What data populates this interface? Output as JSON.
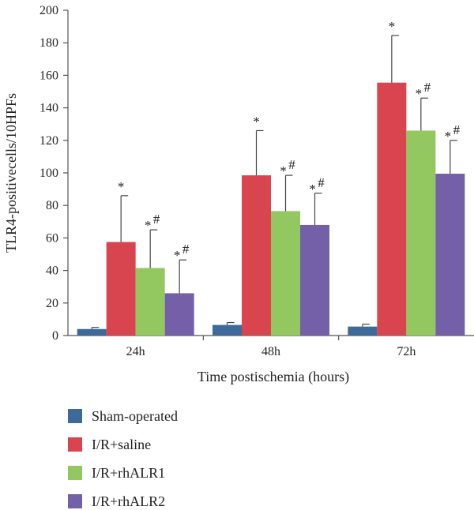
{
  "chart_data": {
    "type": "bar",
    "title": "",
    "xlabel": "Time postischemia (hours)",
    "ylabel": "TLR4-positivecells/10HPFs",
    "ylim": [
      0,
      200
    ],
    "yticks": [
      0,
      20,
      40,
      60,
      80,
      100,
      120,
      140,
      160,
      180,
      200
    ],
    "categories": [
      "24h",
      "48h",
      "72h"
    ],
    "grid": false,
    "legend_position": "bottom-left",
    "series": [
      {
        "name": "Sham-operated",
        "color": "#3d6a99",
        "values": [
          4,
          6.5,
          5.5
        ],
        "errors": [
          1,
          1.5,
          1.5
        ],
        "labels": [
          "",
          "",
          ""
        ]
      },
      {
        "name": "I/R+saline",
        "color": "#d9454e",
        "values": [
          57.5,
          98.5,
          155.5
        ],
        "errors": [
          28.5,
          27.5,
          29
        ],
        "labels": [
          "*",
          "*",
          "*"
        ]
      },
      {
        "name": "I/R+rhALR1",
        "color": "#93c760",
        "values": [
          41.5,
          76.5,
          126
        ],
        "errors": [
          23.5,
          22,
          20
        ],
        "labels": [
          "*#",
          "*#",
          "*#"
        ]
      },
      {
        "name": "I/R+rhALR2",
        "color": "#7460a8",
        "values": [
          26,
          68,
          99.5
        ],
        "errors": [
          20.5,
          19.5,
          20.5
        ],
        "labels": [
          "*#",
          "*#",
          "*#"
        ]
      }
    ]
  }
}
